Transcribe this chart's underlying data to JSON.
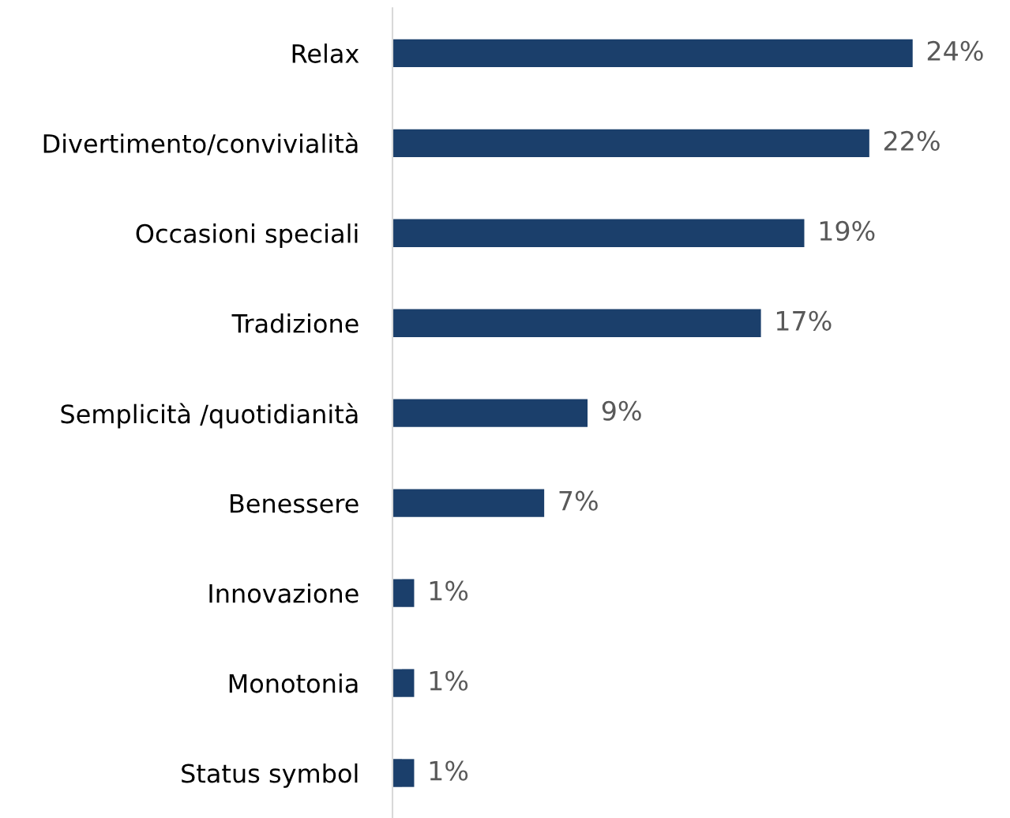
{
  "chart_data": {
    "type": "bar",
    "orientation": "horizontal",
    "categories": [
      "Relax",
      "Divertimento/convivialità",
      "Occasioni speciali",
      "Tradizione",
      "Semplicità /quotidianità",
      "Benessere",
      "Innovazione",
      "Monotonia",
      "Status symbol"
    ],
    "values": [
      24,
      22,
      19,
      17,
      9,
      7,
      1,
      1,
      1
    ],
    "value_labels": [
      "24%",
      "22%",
      "19%",
      "17%",
      "9%",
      "7%",
      "1%",
      "1%",
      "1%"
    ],
    "color": "#1b3f6b",
    "grid": false,
    "legend": false,
    "tick_labels": "y"
  }
}
